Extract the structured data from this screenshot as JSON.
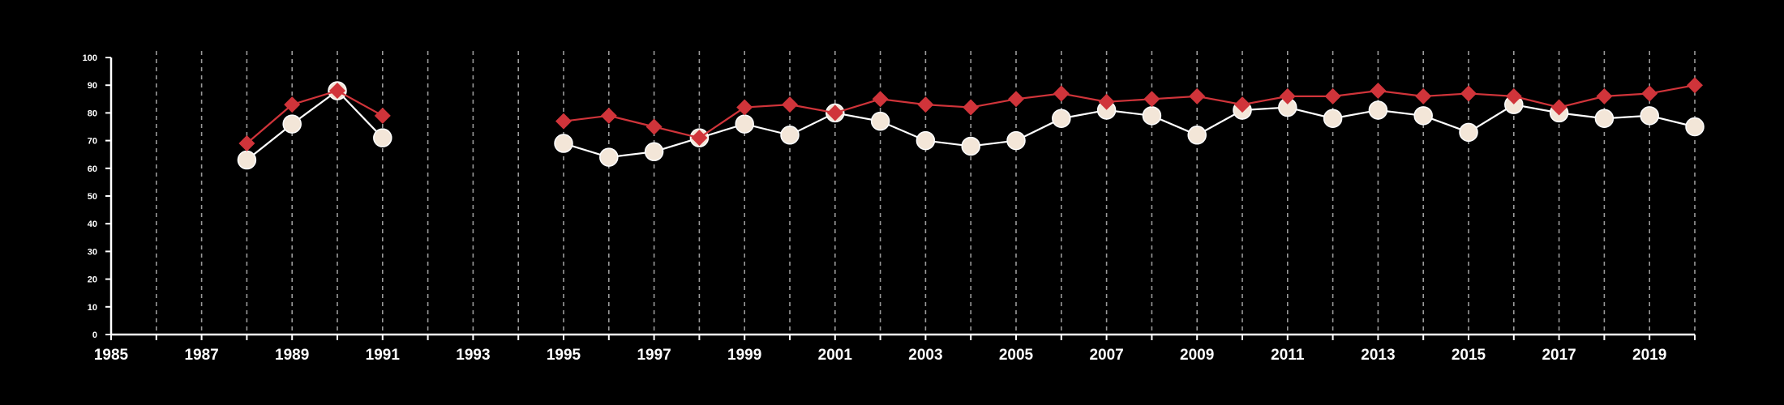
{
  "chart_data": {
    "type": "line",
    "title": "",
    "xlabel": "",
    "ylabel": "",
    "xlim": [
      1985,
      2020
    ],
    "ylim": [
      0,
      100
    ],
    "x_ticks": [
      "1985",
      "1987",
      "1989",
      "1991",
      "1993",
      "1995",
      "1997",
      "1999",
      "2001",
      "2003",
      "2005",
      "2007",
      "2009",
      "2011",
      "2013",
      "2015",
      "2017",
      "2019"
    ],
    "y_ticks": [
      "0",
      "10",
      "20",
      "30",
      "40",
      "50",
      "60",
      "70",
      "80",
      "90",
      "100"
    ],
    "grid": "vertical-dashed-yearly",
    "legend": "none",
    "colors": {
      "background": "#000000",
      "axis": "#ffffff",
      "grid": "#9a9a9a",
      "series_circle_fill": "#f3e6d8",
      "series_circle_line": "#ffffff",
      "series_diamond": "#d0343a"
    },
    "x": [
      1988,
      1989,
      1990,
      1991,
      1995,
      1996,
      1997,
      1998,
      1999,
      2000,
      2001,
      2002,
      2003,
      2004,
      2005,
      2006,
      2007,
      2008,
      2009,
      2010,
      2011,
      2012,
      2013,
      2014,
      2015,
      2016,
      2017,
      2018,
      2019,
      2020
    ],
    "series": [
      {
        "marker": "circle",
        "values": [
          63,
          76,
          88,
          71,
          69,
          64,
          66,
          71,
          76,
          72,
          80,
          77,
          70,
          68,
          70,
          78,
          81,
          79,
          72,
          81,
          82,
          78,
          81,
          79,
          73,
          83,
          80,
          78,
          79,
          75
        ]
      },
      {
        "marker": "diamond",
        "values": [
          69,
          83,
          88,
          79,
          77,
          79,
          75,
          71,
          82,
          83,
          80,
          85,
          83,
          82,
          85,
          87,
          84,
          85,
          86,
          83,
          86,
          86,
          88,
          86,
          87,
          86,
          82,
          86,
          87,
          90
        ]
      }
    ]
  }
}
